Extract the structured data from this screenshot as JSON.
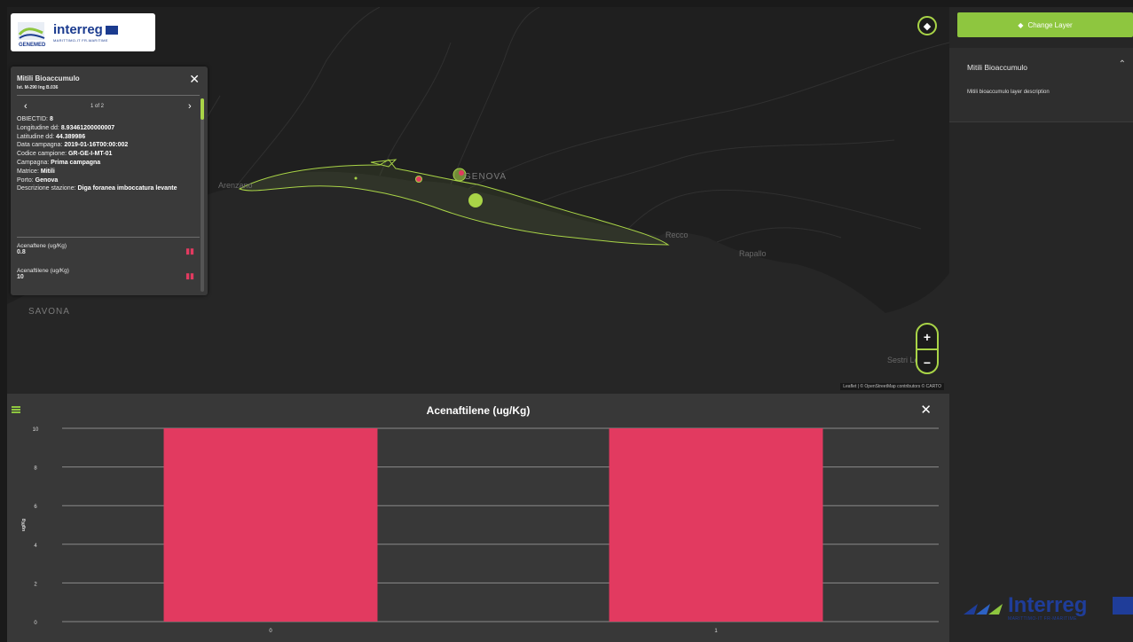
{
  "map": {
    "labels": [
      {
        "text": "Arenzano",
        "cls": ""
      },
      {
        "text": "GENOVA",
        "cls": "big"
      },
      {
        "text": "Recco",
        "cls": ""
      },
      {
        "text": "Rapallo",
        "cls": ""
      },
      {
        "text": "SAVONA",
        "cls": "big"
      },
      {
        "text": "Sestri Levante",
        "cls": ""
      }
    ],
    "attribution": "Leaflet | © OpenStreetMap contributors © CARTO"
  },
  "logo": {
    "word": "interreg",
    "subtitle": "MARITTIMO-IT FR-MARITIME",
    "partner": "GENEMED"
  },
  "popup": {
    "title": "Mitili Bioaccumulo",
    "subtitle": "Ist. M-290 Ing B.036",
    "counter": "1 of 2",
    "fields": [
      {
        "label": "OBIECTID:",
        "value": "8"
      },
      {
        "label": "Longitudine dd:",
        "value": "8.93461200000007"
      },
      {
        "label": "Latitudine dd:",
        "value": "44.389986"
      },
      {
        "label": "Data campagna:",
        "value": "2019-01-16T00:00:002"
      },
      {
        "label": "Codice campione:",
        "value": "GR-GE-I-MT-01"
      },
      {
        "label": "Campagna:",
        "value": "Prima campagna"
      },
      {
        "label": "Matrice:",
        "value": "Mitili"
      },
      {
        "label": "Porto:",
        "value": "Genova"
      },
      {
        "label": "Descrizione stazione:",
        "value": "Diga foranea imboccatura levante"
      }
    ],
    "measures": [
      {
        "label": "Acenaftene (ug/Kg)",
        "value": "0.8"
      },
      {
        "label": "Acenaftilene (ug/Kg)",
        "value": "10"
      }
    ]
  },
  "sidebar": {
    "change_layer_label": "Change Layer",
    "layer_name": "Mitili Bioaccumulo",
    "layer_description": "Mitili bioaccumulo layer description",
    "logo_word": "Interreg",
    "logo_sub": "MARITTIMO-IT FR-MARITIME"
  },
  "chart": {
    "title": "Acenaftilene (ug/Kg)"
  },
  "chart_data": {
    "type": "bar",
    "title": "Acenaftilene (ug/Kg)",
    "categories": [
      "0",
      "1"
    ],
    "values": [
      10,
      10
    ],
    "xlabel": "",
    "ylabel": "ug/Kg",
    "ylim": [
      0,
      10
    ],
    "yticks": [
      0,
      2,
      4,
      6,
      8,
      10
    ],
    "grid": true,
    "bar_color": "#e23a60"
  },
  "colors": {
    "accent": "#8ec63f",
    "bar": "#e23a60"
  }
}
